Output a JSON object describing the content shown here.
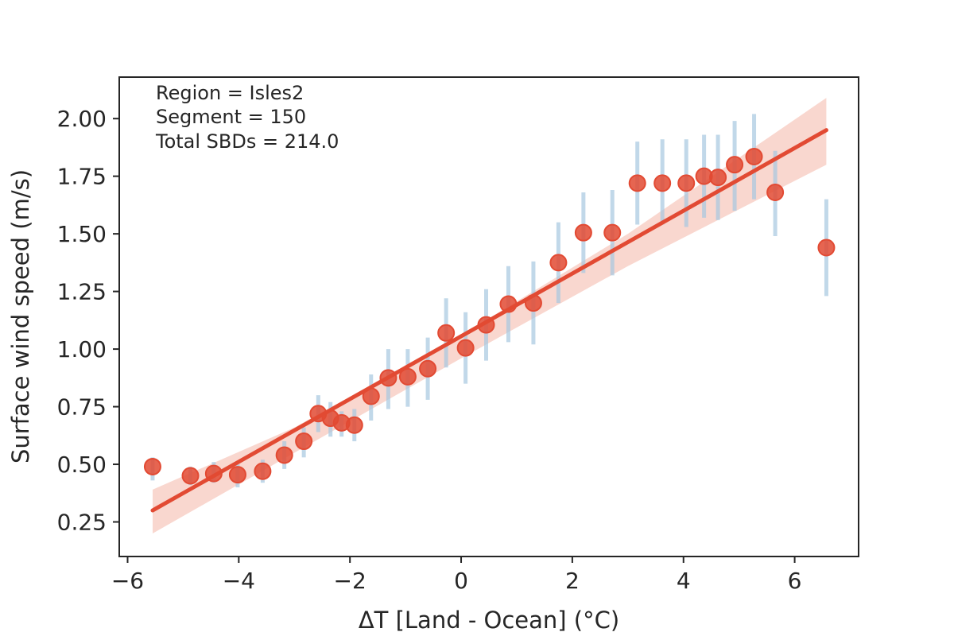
{
  "chart_data": {
    "type": "scatter",
    "xlabel": "ΔT [Land - Ocean] (°C)",
    "ylabel": "Surface wind speed (m/s)",
    "xlim": [
      -6.15,
      7.15
    ],
    "ylim": [
      0.1,
      2.18
    ],
    "grid": false,
    "xticks": [
      -6,
      -4,
      -2,
      0,
      2,
      4,
      6
    ],
    "xtick_labels": [
      "−6",
      "−4",
      "−2",
      "0",
      "2",
      "4",
      "6"
    ],
    "yticks": [
      0.25,
      0.5,
      0.75,
      1.0,
      1.25,
      1.5,
      1.75,
      2.0
    ],
    "ytick_labels": [
      "0.25",
      "0.50",
      "0.75",
      "1.00",
      "1.25",
      "1.50",
      "1.75",
      "2.00"
    ],
    "annotations": [
      "Region = Isles2",
      "Segment = 150",
      "Total SBDs = 214.0"
    ],
    "points": [
      {
        "x": -5.55,
        "y": 0.49,
        "lo": 0.43,
        "hi": 0.53
      },
      {
        "x": -4.87,
        "y": 0.45,
        "lo": 0.41,
        "hi": 0.49
      },
      {
        "x": -4.45,
        "y": 0.46,
        "lo": 0.42,
        "hi": 0.51
      },
      {
        "x": -4.02,
        "y": 0.455,
        "lo": 0.4,
        "hi": 0.5
      },
      {
        "x": -3.57,
        "y": 0.47,
        "lo": 0.42,
        "hi": 0.52
      },
      {
        "x": -3.18,
        "y": 0.54,
        "lo": 0.48,
        "hi": 0.6
      },
      {
        "x": -2.83,
        "y": 0.6,
        "lo": 0.53,
        "hi": 0.66
      },
      {
        "x": -2.57,
        "y": 0.72,
        "lo": 0.64,
        "hi": 0.8
      },
      {
        "x": -2.35,
        "y": 0.7,
        "lo": 0.62,
        "hi": 0.77
      },
      {
        "x": -2.15,
        "y": 0.68,
        "lo": 0.62,
        "hi": 0.73
      },
      {
        "x": -1.92,
        "y": 0.67,
        "lo": 0.6,
        "hi": 0.74
      },
      {
        "x": -1.62,
        "y": 0.795,
        "lo": 0.69,
        "hi": 0.89
      },
      {
        "x": -1.31,
        "y": 0.875,
        "lo": 0.74,
        "hi": 1.0
      },
      {
        "x": -0.96,
        "y": 0.88,
        "lo": 0.75,
        "hi": 1.0
      },
      {
        "x": -0.6,
        "y": 0.915,
        "lo": 0.78,
        "hi": 1.05
      },
      {
        "x": -0.27,
        "y": 1.07,
        "lo": 0.92,
        "hi": 1.22
      },
      {
        "x": 0.08,
        "y": 1.005,
        "lo": 0.85,
        "hi": 1.16
      },
      {
        "x": 0.45,
        "y": 1.105,
        "lo": 0.95,
        "hi": 1.26
      },
      {
        "x": 0.85,
        "y": 1.195,
        "lo": 1.03,
        "hi": 1.36
      },
      {
        "x": 1.3,
        "y": 1.2,
        "lo": 1.02,
        "hi": 1.38
      },
      {
        "x": 1.75,
        "y": 1.375,
        "lo": 1.2,
        "hi": 1.55
      },
      {
        "x": 2.2,
        "y": 1.505,
        "lo": 1.33,
        "hi": 1.68
      },
      {
        "x": 2.72,
        "y": 1.505,
        "lo": 1.32,
        "hi": 1.69
      },
      {
        "x": 3.17,
        "y": 1.72,
        "lo": 1.54,
        "hi": 1.9
      },
      {
        "x": 3.62,
        "y": 1.72,
        "lo": 1.54,
        "hi": 1.91
      },
      {
        "x": 4.05,
        "y": 1.72,
        "lo": 1.53,
        "hi": 1.91
      },
      {
        "x": 4.37,
        "y": 1.75,
        "lo": 1.57,
        "hi": 1.93
      },
      {
        "x": 4.62,
        "y": 1.745,
        "lo": 1.56,
        "hi": 1.93
      },
      {
        "x": 4.92,
        "y": 1.8,
        "lo": 1.6,
        "hi": 1.99
      },
      {
        "x": 5.27,
        "y": 1.835,
        "lo": 1.65,
        "hi": 2.02
      },
      {
        "x": 5.65,
        "y": 1.68,
        "lo": 1.49,
        "hi": 1.86
      },
      {
        "x": 6.57,
        "y": 1.44,
        "lo": 1.23,
        "hi": 1.65
      }
    ],
    "fit": {
      "x": [
        -5.55,
        6.57
      ],
      "y": [
        0.3,
        1.95
      ]
    },
    "confidence_band": {
      "x": [
        -5.55,
        -3.0,
        0.0,
        3.0,
        6.57
      ],
      "lo": [
        0.2,
        0.55,
        0.96,
        1.36,
        1.8
      ],
      "hi": [
        0.39,
        0.66,
        1.06,
        1.5,
        2.09
      ]
    },
    "colors": {
      "marker": "#e24a33",
      "marker_edge": "#e24a33",
      "fit_line": "#e24a33",
      "band": "#f7c9bf",
      "error_bar": "#a6c8e0",
      "axis": "#262626"
    }
  }
}
